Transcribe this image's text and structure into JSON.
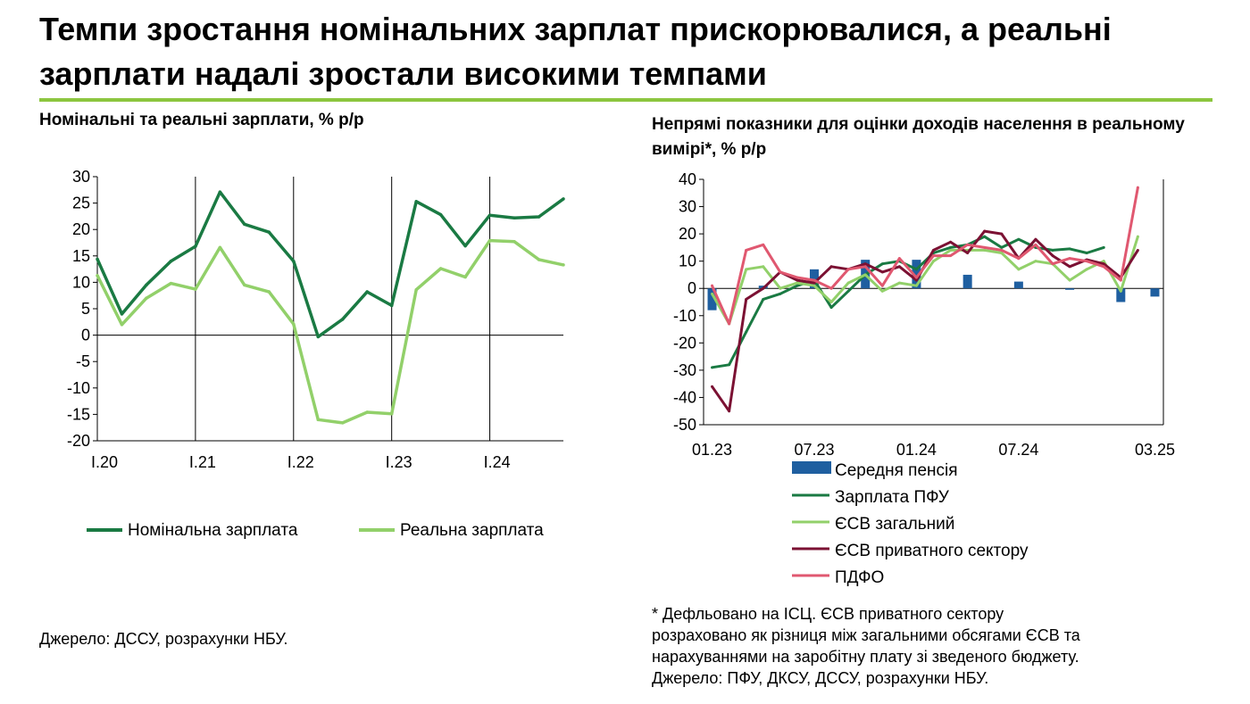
{
  "title": "Темпи зростання номінальних зарплат прискорювалися, а реальні зарплати надалі зростали високими темпами",
  "chart_data": [
    {
      "type": "line",
      "title": "Номінальні та реальні зарплати, % р/р",
      "x": [
        "I.20",
        "II.20",
        "III.20",
        "IV.20",
        "I.21",
        "II.21",
        "III.21",
        "IV.21",
        "I.22",
        "II.22",
        "III.22",
        "IV.22",
        "I.23",
        "II.23",
        "III.23",
        "IV.23",
        "I.24",
        "II.24",
        "III.24",
        "IV.24"
      ],
      "tick_labels": [
        "I.20",
        "I.21",
        "I.22",
        "I.23",
        "I.24"
      ],
      "ylim": [
        -20,
        30
      ],
      "yticks": [
        30,
        25,
        20,
        15,
        10,
        5,
        0,
        -5,
        -10,
        -15,
        -20
      ],
      "series": [
        {
          "name": "Номінальна зарплата",
          "color": "#1a7a43",
          "values": [
            14.4,
            4,
            9.5,
            14,
            16.8,
            27.1,
            21,
            19.5,
            14,
            -0.3,
            3,
            8.2,
            5.6,
            25.3,
            22.8,
            16.9,
            22.7,
            22.2,
            22.4,
            25.8
          ]
        },
        {
          "name": "Реальна зарплата",
          "color": "#92d06a",
          "values": [
            11.3,
            2,
            7,
            9.8,
            8.7,
            16.6,
            9.5,
            8.2,
            2.1,
            -16,
            -16.6,
            -14.6,
            -14.9,
            8.6,
            12.6,
            11,
            17.9,
            17.7,
            14.3,
            13.3
          ]
        }
      ],
      "legend": "bottom",
      "source": "Джерело: ДССУ, розрахунки НБУ."
    },
    {
      "type": "bar+line",
      "title": "Непрямі показники для оцінки доходів населення в реальному вимірі*, % р/р",
      "x": [
        "01.23",
        "02.23",
        "03.23",
        "04.23",
        "05.23",
        "06.23",
        "07.23",
        "08.23",
        "09.23",
        "10.23",
        "11.23",
        "12.23",
        "01.24",
        "02.24",
        "03.24",
        "04.24",
        "05.24",
        "06.24",
        "07.24",
        "08.24",
        "09.24",
        "10.24",
        "11.24",
        "12.24",
        "01.25",
        "02.25",
        "03.25"
      ],
      "tick_labels": [
        "01.23",
        "07.23",
        "01.24",
        "07.24",
        "03.25"
      ],
      "ylim": [
        -50,
        40
      ],
      "yticks": [
        40,
        30,
        20,
        10,
        0,
        -10,
        -20,
        -30,
        -40,
        -50
      ],
      "bars": {
        "name": "Середня пенсія",
        "color": "#1f5fa0",
        "values": [
          -8,
          null,
          null,
          1,
          null,
          null,
          7,
          null,
          null,
          10.5,
          null,
          null,
          10.5,
          null,
          null,
          5,
          null,
          null,
          2.5,
          null,
          null,
          -0.5,
          null,
          null,
          -5,
          null,
          -3
        ]
      },
      "series": [
        {
          "name": "Зарплата ПФУ",
          "color": "#1a7a43",
          "values": [
            -29,
            -28,
            -16,
            -4,
            -2,
            1,
            3,
            -7,
            -1,
            5,
            9,
            10,
            7,
            13,
            15,
            16,
            19,
            15,
            18,
            15,
            14,
            14.5,
            13,
            15,
            null,
            null,
            null
          ]
        },
        {
          "name": "ЄСВ загальний",
          "color": "#92d06a",
          "values": [
            -2,
            -13,
            7,
            8,
            0,
            2,
            1,
            -5,
            2,
            5,
            -1,
            2,
            1,
            10,
            14,
            14,
            14,
            13,
            7,
            10,
            9,
            3,
            7,
            10,
            -1,
            19,
            null
          ]
        },
        {
          "name": "ЄСВ приватного сектору",
          "color": "#7b1133",
          "values": [
            -36,
            -45,
            -4,
            0,
            6,
            3,
            2,
            8,
            7,
            9,
            6,
            8,
            3,
            14,
            17,
            13,
            21,
            20,
            11,
            18,
            12,
            8,
            10.5,
            9,
            4,
            14,
            null
          ]
        },
        {
          "name": "ПДФО",
          "color": "#e05870",
          "values": [
            1,
            -13,
            14,
            16,
            6,
            4,
            3,
            0,
            7,
            8,
            1,
            11,
            4,
            12,
            12,
            16,
            15,
            14,
            11,
            16,
            9,
            11,
            10,
            8,
            3,
            37,
            null
          ]
        }
      ],
      "legend": "bottom",
      "footnote": [
        "* Дефльовано на ІСЦ. ЄСВ приватного сектору",
        "розраховано як різниця між загальними обсягами ЄСВ та",
        "нарахуваннями на заробітну плату зі зведеного бюджету.",
        "Джерело: ПФУ, ДКСУ, ДССУ, розрахунки НБУ."
      ]
    }
  ]
}
